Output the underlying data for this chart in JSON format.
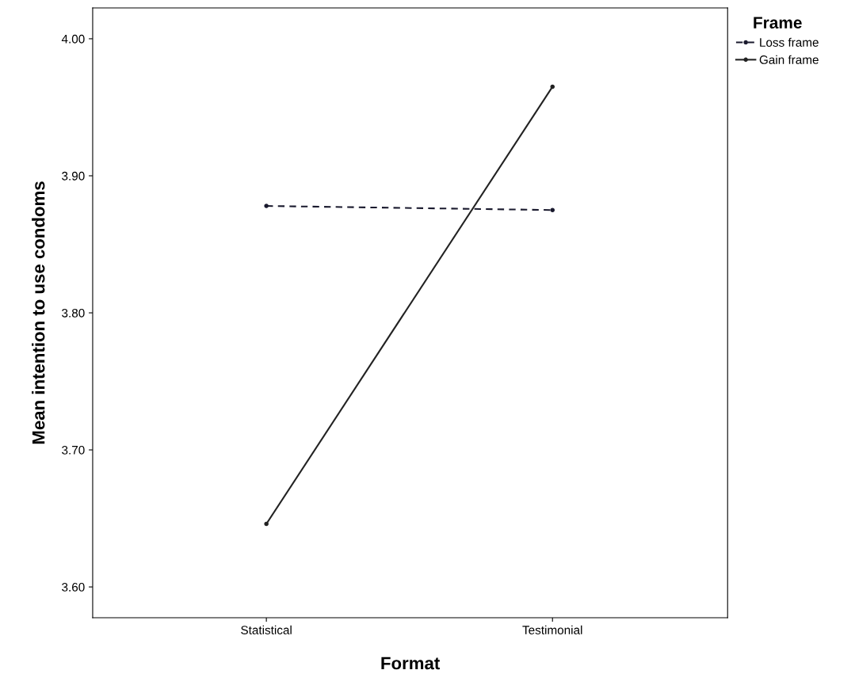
{
  "chart_data": {
    "type": "line",
    "xlabel": "Format",
    "ylabel": "Mean intention to use condoms",
    "legend_title": "Frame",
    "categories": [
      "Statistical",
      "Testimonial"
    ],
    "series": [
      {
        "name": "Loss frame",
        "color": "#1a1a2e",
        "values": [
          3.878,
          3.875
        ],
        "line_style": "dashed"
      },
      {
        "name": "Gain frame",
        "color": "#222222",
        "values": [
          3.646,
          3.965
        ],
        "line_style": "solid"
      }
    ],
    "ylim": [
      3.5775,
      4.0225
    ],
    "yticks": [
      {
        "value": 3.6,
        "label": "3.60"
      },
      {
        "value": 3.7,
        "label": "3.70"
      },
      {
        "value": 3.8,
        "label": "3.80"
      },
      {
        "value": 3.9,
        "label": "3.90"
      },
      {
        "value": 4.0,
        "label": "4.00"
      }
    ],
    "grid": false,
    "legend": "top right",
    "marker": "circle"
  }
}
